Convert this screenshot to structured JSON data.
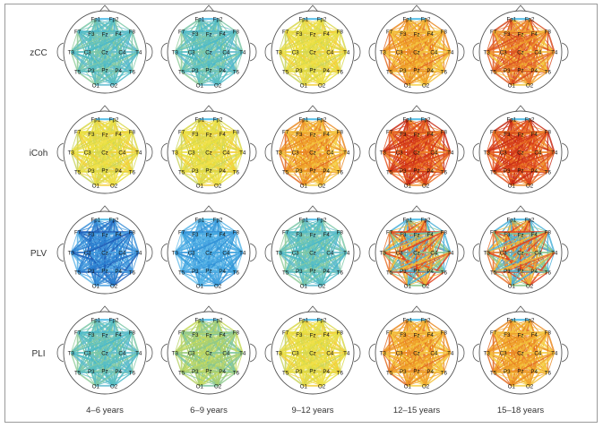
{
  "figure": {
    "rows": [
      {
        "label": "zCC",
        "stages": [
          "teal",
          "teal",
          "yellow",
          "orange",
          "orange-red"
        ]
      },
      {
        "label": "iCoh",
        "stages": [
          "yellow",
          "yellow",
          "orange",
          "red",
          "red"
        ]
      },
      {
        "label": "PLV",
        "stages": [
          "blue",
          "blue-light",
          "teal",
          "mixed",
          "mixed"
        ]
      },
      {
        "label": "PLI",
        "stages": [
          "teal",
          "green",
          "yellow",
          "orange",
          "orange"
        ]
      }
    ],
    "columns": [
      "4–6 years",
      "6–9 years",
      "9–12 years",
      "12–15 years",
      "15–18 years"
    ],
    "electrodes": [
      "Fp1",
      "Fp2",
      "F7",
      "F3",
      "Fz",
      "F4",
      "F8",
      "T3",
      "C3",
      "Cz",
      "C4",
      "T4",
      "T5",
      "P3",
      "Pz",
      "P4",
      "T6",
      "O1",
      "O2"
    ],
    "palette": {
      "blue": [
        "#1f5fb8",
        "#2a7fd0",
        "#3a8fd8",
        "#4aa0e0",
        "#5bb3e6"
      ],
      "blue-light": [
        "#2f8fd6",
        "#45a6e2",
        "#5bb6e8",
        "#38a0dc",
        "#6cc0ea"
      ],
      "teal": [
        "#49b8c8",
        "#5cc0c0",
        "#7cc8a8",
        "#62bcd0",
        "#8fcc9a"
      ],
      "green": [
        "#8cc88a",
        "#a9d070",
        "#c4d95a",
        "#7cc4a0",
        "#b8d468"
      ],
      "yellow": [
        "#e8df3c",
        "#f0e04a",
        "#d9d84a",
        "#f3cf3a",
        "#c9d45a"
      ],
      "orange": [
        "#f3c13a",
        "#f0a22a",
        "#ea8a22",
        "#f6d046",
        "#e26a1e"
      ],
      "orange-red": [
        "#f0a02a",
        "#e8762a",
        "#d84a1e",
        "#f3c43c",
        "#e05a22"
      ],
      "red": [
        "#e86a20",
        "#d8401a",
        "#c82a14",
        "#f08e2a",
        "#e35420"
      ],
      "mixed": [
        "#e0401a",
        "#f0b838",
        "#4ab0d8",
        "#8cc88a",
        "#e8722a"
      ]
    },
    "accent_top": "#5bc0e8"
  }
}
